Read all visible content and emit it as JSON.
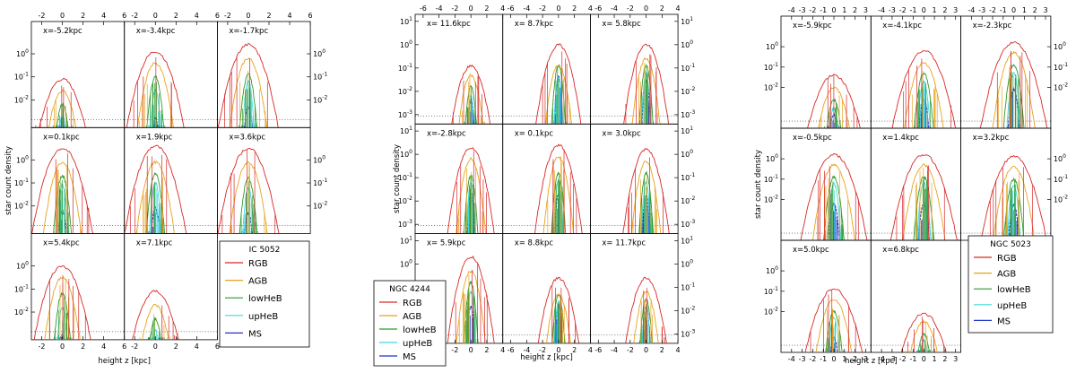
{
  "chart_data": [
    {
      "type": "line",
      "title": "IC 5052",
      "xlabel": "height z [kpc]",
      "ylabel": "star count density",
      "xlim": [
        -3,
        6
      ],
      "ylim_log10": [
        -3.2,
        1.4
      ],
      "xticks": [
        "-2",
        "0",
        "2",
        "4",
        "6"
      ],
      "yticks": [
        {
          "base": "10",
          "exp": "0",
          "v": 0
        },
        {
          "base": "10",
          "exp": "-1",
          "v": -1
        },
        {
          "base": "10",
          "exp": "-2",
          "v": -2
        }
      ],
      "rightticks": [
        {
          "base": "10",
          "exp": "0",
          "v": 0
        },
        {
          "base": "10",
          "exp": "-1",
          "v": -1
        },
        {
          "base": "10",
          "exp": "-2",
          "v": -2
        }
      ],
      "legend": {
        "title": "IC 5052",
        "items": [
          {
            "label": "RGB",
            "color": "#d62728"
          },
          {
            "label": "AGB",
            "color": "#e8a21e"
          },
          {
            "label": "lowHeB",
            "color": "#2e9a2e"
          },
          {
            "label": "upHeB",
            "color": "#3fd8e0"
          },
          {
            "label": "MS",
            "color": "#1f35c8"
          }
        ]
      },
      "panels": [
        {
          "label": "x=-5.2kpc",
          "center": 0,
          "peaks": [
            -1.1,
            -1.6,
            -2.2,
            -2.7,
            -4.0
          ]
        },
        {
          "label": "x=-3.4kpc",
          "center": 0,
          "peaks": [
            0.1,
            -0.4,
            -1.0,
            -1.6,
            -2.8
          ]
        },
        {
          "label": "x=-1.7kpc",
          "center": 0,
          "peaks": [
            0.4,
            -0.2,
            -0.9,
            -1.2,
            -2.3
          ]
        },
        {
          "label": "x=0.1kpc",
          "center": 0,
          "peaks": [
            0.5,
            -0.1,
            -0.7,
            -1.1,
            -2.2
          ]
        },
        {
          "label": "x=1.9kpc",
          "center": 0,
          "peaks": [
            0.6,
            -0.1,
            -0.6,
            -1.0,
            -2.1
          ]
        },
        {
          "label": "x=3.6kpc",
          "center": 0,
          "peaks": [
            0.5,
            -0.1,
            -0.8,
            -1.2,
            -2.3
          ]
        },
        {
          "label": "x=5.4kpc",
          "center": 0,
          "peaks": [
            0.0,
            -0.5,
            -1.2,
            -1.8,
            -3.0
          ]
        },
        {
          "label": "x=7.1kpc",
          "center": 0,
          "peaks": [
            -1.1,
            -1.7,
            -2.3,
            -2.8,
            -4.0
          ]
        }
      ]
    },
    {
      "type": "line",
      "title": "NGC 4244",
      "xlabel": "height z [kpc]",
      "ylabel": "star count density",
      "xlim": [
        -7,
        4
      ],
      "ylim_log10": [
        -3.4,
        1.3
      ],
      "xticks": [
        "-6",
        "-4",
        "-2",
        "0",
        "2",
        "4"
      ],
      "yticks": [
        {
          "base": "10",
          "exp": "1",
          "v": 1
        },
        {
          "base": "10",
          "exp": "0",
          "v": 0
        },
        {
          "base": "10",
          "exp": "-1",
          "v": -1
        },
        {
          "base": "10",
          "exp": "-2",
          "v": -2
        },
        {
          "base": "10",
          "exp": "-3",
          "v": -3
        }
      ],
      "rightticks": [
        {
          "base": "10",
          "exp": "1",
          "v": 1
        },
        {
          "base": "10",
          "exp": "0",
          "v": 0
        },
        {
          "base": "10",
          "exp": "-1",
          "v": -1
        },
        {
          "base": "10",
          "exp": "-2",
          "v": -2
        },
        {
          "base": "10",
          "exp": "-3",
          "v": -3
        }
      ],
      "legend": {
        "title": "NGC 4244",
        "items": [
          {
            "label": "RGB",
            "color": "#d62728"
          },
          {
            "label": "AGB",
            "color": "#e8a21e"
          },
          {
            "label": "lowHeB",
            "color": "#2e9a2e"
          },
          {
            "label": "upHeB",
            "color": "#3fd8e0"
          },
          {
            "label": "MS",
            "color": "#1f35c8"
          }
        ]
      },
      "panels": [
        {
          "label": "x= 11.6kpc",
          "center": 0,
          "peaks": [
            -0.9,
            -1.3,
            -1.8,
            -2.2,
            -2.4
          ]
        },
        {
          "label": "x= 8.7kpc",
          "center": 0,
          "peaks": [
            0.0,
            -0.9,
            -0.9,
            -1.4,
            -1.4
          ]
        },
        {
          "label": "x= 5.8kpc",
          "center": 0,
          "peaks": [
            0.0,
            -0.6,
            -0.9,
            -1.2,
            -1.5
          ]
        },
        {
          "label": "x=-2.8kpc",
          "center": 0,
          "peaks": [
            0.3,
            -0.2,
            -0.9,
            -1.2,
            -1.7
          ]
        },
        {
          "label": "x= 0.1kpc",
          "center": 0,
          "peaks": [
            0.4,
            -0.1,
            -0.8,
            -1.1,
            -1.7
          ]
        },
        {
          "label": "x= 3.0kpc",
          "center": 0,
          "peaks": [
            0.2,
            -0.3,
            -0.8,
            -1.2,
            -1.8
          ]
        },
        {
          "label": "x= 5.9kpc",
          "center": 0,
          "peaks": [
            0.3,
            -0.3,
            -0.8,
            -1.2,
            -1.8
          ]
        },
        {
          "label": "x= 8.8kpc",
          "center": 0,
          "peaks": [
            -0.6,
            -1.3,
            -1.3,
            -1.6,
            -1.8
          ]
        },
        {
          "label": "x= 11.7kpc",
          "center": 0,
          "peaks": [
            -0.6,
            -1.2,
            -1.5,
            -1.8,
            -1.8
          ]
        }
      ]
    },
    {
      "type": "line",
      "title": "NGC 5023",
      "xlabel": "height z [kpc]",
      "ylabel": "star count density",
      "xlim": [
        -5,
        3.5
      ],
      "ylim_log10": [
        -4.0,
        1.5
      ],
      "xticks": [
        "-4",
        "-3",
        "-2",
        "-1",
        "0",
        "1",
        "2",
        "3"
      ],
      "yticks": [
        {
          "base": "10",
          "exp": "0",
          "v": 0
        },
        {
          "base": "10",
          "exp": "-1",
          "v": -1
        },
        {
          "base": "10",
          "exp": "-2",
          "v": -2
        }
      ],
      "rightticks": [
        {
          "base": "10",
          "exp": "0",
          "v": 0
        },
        {
          "base": "10",
          "exp": "-1",
          "v": -1
        },
        {
          "base": "10",
          "exp": "-2",
          "v": -2
        }
      ],
      "legend": {
        "title": "NGC 5023",
        "items": [
          {
            "label": "RGB",
            "color": "#d62728"
          },
          {
            "label": "AGB",
            "color": "#e8a21e"
          },
          {
            "label": "lowHeB",
            "color": "#2e9a2e"
          },
          {
            "label": "upHeB",
            "color": "#3fd8e0"
          },
          {
            "label": "MS",
            "color": "#1f35c8"
          }
        ]
      },
      "panels": [
        {
          "label": "x=-5.9kpc",
          "center": 0,
          "peaks": [
            -1.4,
            -2.0,
            -2.6,
            -3.0,
            -3.3
          ]
        },
        {
          "label": "x=-4.1kpc",
          "center": 0,
          "peaks": [
            -0.2,
            -0.8,
            -1.3,
            -1.7,
            -2.6
          ]
        },
        {
          "label": "x=-2.3kpc",
          "center": 0,
          "peaks": [
            0.2,
            -0.3,
            -0.9,
            -1.3,
            -2.1
          ]
        },
        {
          "label": "x=-0.5kpc",
          "center": 0,
          "peaks": [
            0.2,
            -0.3,
            -0.9,
            -1.2,
            -2.2
          ]
        },
        {
          "label": "x=1.4kpc",
          "center": 0,
          "peaks": [
            0.2,
            -0.3,
            -0.9,
            -1.2,
            -2.2
          ]
        },
        {
          "label": "x=3.2kpc",
          "center": 0,
          "peaks": [
            0.1,
            -0.4,
            -1.0,
            -1.3,
            -2.3
          ]
        },
        {
          "label": "x=5.0kpc",
          "center": 0,
          "peaks": [
            -0.9,
            -1.4,
            -2.0,
            -2.3,
            -3.3
          ]
        },
        {
          "label": "x=6.8kpc",
          "center": 0,
          "peaks": [
            -2.1,
            -2.5,
            -3.1,
            -3.4,
            -4.3
          ]
        }
      ]
    }
  ]
}
